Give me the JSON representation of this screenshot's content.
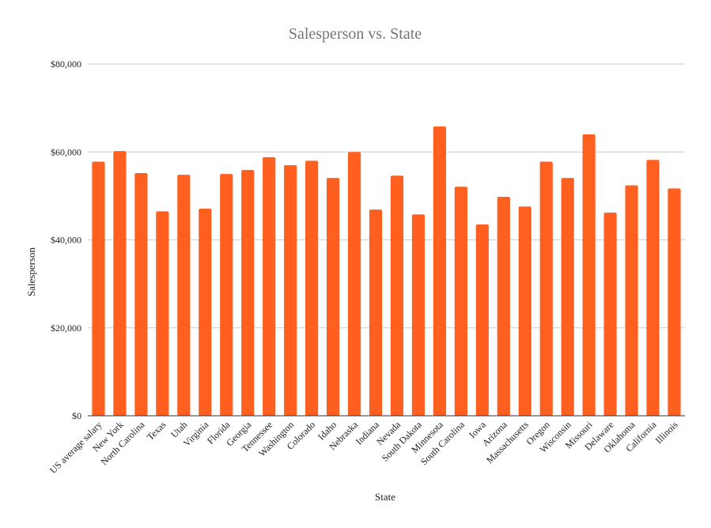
{
  "chart_data": {
    "type": "bar",
    "title": "Salesperson vs. State",
    "xlabel": "State",
    "ylabel": "Salesperson",
    "ylim": [
      0,
      80000
    ],
    "yticks": [
      0,
      20000,
      40000,
      60000,
      80000
    ],
    "ytick_labels": [
      "$0",
      "$20,000",
      "$40,000",
      "$60,000",
      "$80,000"
    ],
    "grid": true,
    "legend": "none",
    "bar_color": "#ff5f1f",
    "categories": [
      "US average salary",
      "New York",
      "North Carolina",
      "Texas",
      "Utah",
      "Virginia",
      "Florida",
      "Georgia",
      "Tennessee",
      "Washington",
      "Colorado",
      "Idaho",
      "Nebraska",
      "Indiana",
      "Nevada",
      "South Dakota",
      "Minnesota",
      "South Carolina",
      "Iowa",
      "Arizona",
      "Massachusetts",
      "Oregon",
      "Wisconsin",
      "Missouri",
      "Delaware",
      "Oklahoma",
      "California",
      "Illinois"
    ],
    "values": [
      57800,
      60200,
      55200,
      46500,
      54800,
      47100,
      55000,
      55900,
      58800,
      57000,
      58000,
      54100,
      60000,
      46900,
      54600,
      45800,
      65800,
      52100,
      43500,
      49800,
      47600,
      57800,
      54100,
      64000,
      46200,
      52400,
      58200,
      51700
    ]
  }
}
